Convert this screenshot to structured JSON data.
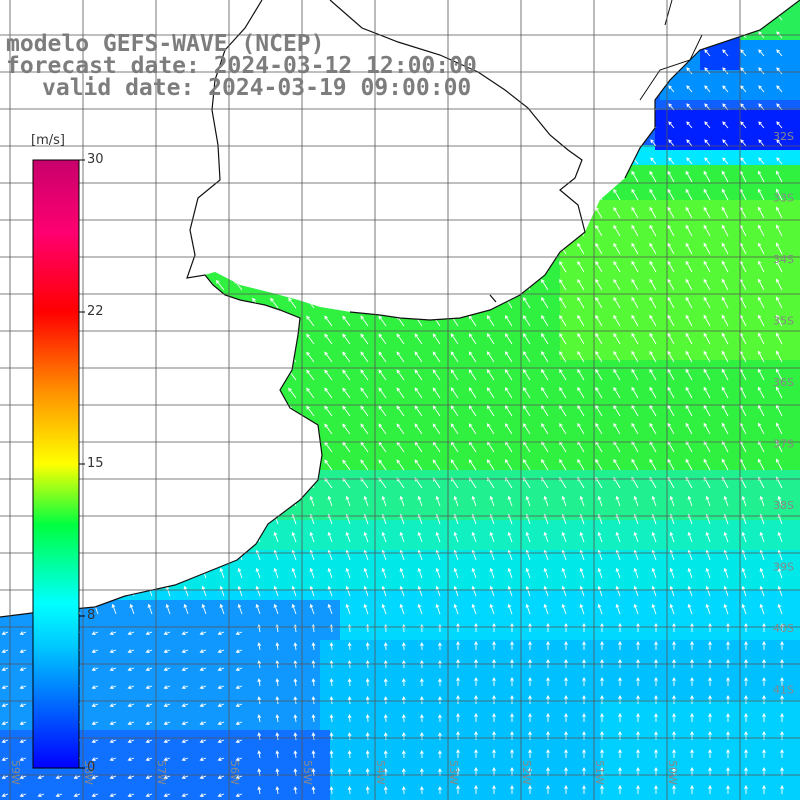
{
  "header": {
    "model": "modelo GEFS-WAVE (NCEP)",
    "forecast_date": "forecast date: 2024-03-12 12:00:00",
    "valid_date": "valid date: 2024-03-19 09:00:00"
  },
  "colorbar": {
    "unit": "[m/s]",
    "ticks": [
      {
        "label": "30",
        "value": 30
      },
      {
        "label": "22",
        "value": 22
      },
      {
        "label": "15",
        "value": 15
      },
      {
        "label": "8",
        "value": 8
      },
      {
        "label": "0",
        "value": 0
      }
    ],
    "stops": [
      "#0000ff",
      "#00c8ff",
      "#00ffff",
      "#00ff00",
      "#ffff00",
      "#ff8000",
      "#ff0000",
      "#ff0080",
      "#c00080"
    ]
  },
  "map": {
    "lon_labels": [
      "59W",
      "58W",
      "57W",
      "56W",
      "55W",
      "54W",
      "53W",
      "52W",
      "51W",
      "50W"
    ],
    "lat_labels": [
      "32S",
      "33S",
      "34S",
      "35S",
      "36S",
      "37S",
      "38S",
      "39S",
      "40S",
      "41S"
    ],
    "colors": {
      "land": "#ffffff",
      "coast": "#111111",
      "grid": "#555555",
      "arrow": "#ffffff",
      "deep_blue": "#0000ff",
      "strong_blue": "#1060ff"
    }
  }
}
